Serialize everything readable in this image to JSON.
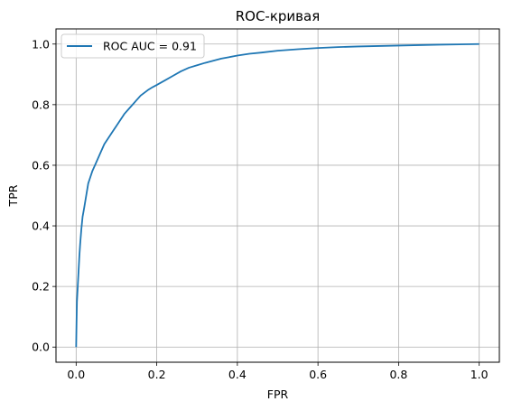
{
  "chart_data": {
    "type": "line",
    "title": "ROC-кривая",
    "xlabel": "FPR",
    "ylabel": "TPR",
    "xlim": [
      -0.05,
      1.05
    ],
    "ylim": [
      -0.05,
      1.05
    ],
    "xticks": [
      0.0,
      0.2,
      0.4,
      0.6,
      0.8,
      1.0
    ],
    "yticks": [
      0.0,
      0.2,
      0.4,
      0.6,
      0.8,
      1.0
    ],
    "xtick_labels": [
      "0.0",
      "0.2",
      "0.4",
      "0.6",
      "0.8",
      "1.0"
    ],
    "ytick_labels": [
      "0.0",
      "0.2",
      "0.4",
      "0.6",
      "0.8",
      "1.0"
    ],
    "grid": true,
    "legend_position": "top-left",
    "series": [
      {
        "name": "ROC AUC = 0.91",
        "color": "#1f77b4",
        "x": [
          0.0,
          0.001,
          0.002,
          0.004,
          0.006,
          0.008,
          0.01,
          0.013,
          0.016,
          0.02,
          0.025,
          0.03,
          0.035,
          0.04,
          0.05,
          0.06,
          0.07,
          0.08,
          0.09,
          0.1,
          0.11,
          0.12,
          0.13,
          0.14,
          0.15,
          0.16,
          0.17,
          0.18,
          0.19,
          0.2,
          0.22,
          0.24,
          0.26,
          0.28,
          0.3,
          0.32,
          0.34,
          0.36,
          0.38,
          0.4,
          0.43,
          0.46,
          0.5,
          0.55,
          0.6,
          0.65,
          0.7,
          0.8,
          0.9,
          1.0
        ],
        "y": [
          0.0,
          0.08,
          0.15,
          0.2,
          0.25,
          0.3,
          0.34,
          0.39,
          0.43,
          0.46,
          0.5,
          0.54,
          0.56,
          0.58,
          0.61,
          0.64,
          0.67,
          0.69,
          0.71,
          0.73,
          0.75,
          0.77,
          0.785,
          0.8,
          0.815,
          0.83,
          0.84,
          0.85,
          0.858,
          0.865,
          0.88,
          0.895,
          0.91,
          0.922,
          0.93,
          0.938,
          0.945,
          0.952,
          0.957,
          0.962,
          0.968,
          0.972,
          0.978,
          0.983,
          0.987,
          0.99,
          0.992,
          0.995,
          0.998,
          1.0
        ]
      }
    ]
  }
}
